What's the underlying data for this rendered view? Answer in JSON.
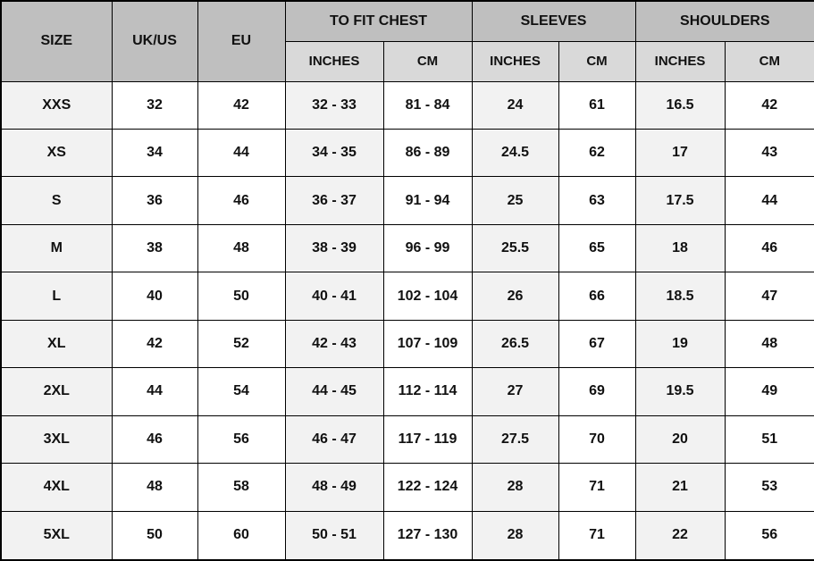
{
  "colors": {
    "header_bg": "#bfbfbf",
    "subheader_bg": "#d9d9d9",
    "shaded_cell_bg": "#f2f2f2",
    "white_cell_bg": "#ffffff",
    "border": "#000000",
    "text": "#111111"
  },
  "chart_data": {
    "type": "table",
    "header": {
      "size": "SIZE",
      "uk_us": "UK/US",
      "eu": "EU",
      "groups": [
        {
          "label": "TO FIT CHEST"
        },
        {
          "label": "SLEEVES"
        },
        {
          "label": "SHOULDERS"
        }
      ],
      "sub": [
        "INCHES",
        "CM",
        "INCHES",
        "CM",
        "INCHES",
        "CM"
      ]
    },
    "rows": [
      [
        "XXS",
        "32",
        "42",
        "32 - 33",
        "81 - 84",
        "24",
        "61",
        "16.5",
        "42"
      ],
      [
        "XS",
        "34",
        "44",
        "34 - 35",
        "86 - 89",
        "24.5",
        "62",
        "17",
        "43"
      ],
      [
        "S",
        "36",
        "46",
        "36 - 37",
        "91 - 94",
        "25",
        "63",
        "17.5",
        "44"
      ],
      [
        "M",
        "38",
        "48",
        "38 - 39",
        "96 - 99",
        "25.5",
        "65",
        "18",
        "46"
      ],
      [
        "L",
        "40",
        "50",
        "40 - 41",
        "102 - 104",
        "26",
        "66",
        "18.5",
        "47"
      ],
      [
        "XL",
        "42",
        "52",
        "42 - 43",
        "107 - 109",
        "26.5",
        "67",
        "19",
        "48"
      ],
      [
        "2XL",
        "44",
        "54",
        "44 - 45",
        "112 - 114",
        "27",
        "69",
        "19.5",
        "49"
      ],
      [
        "3XL",
        "46",
        "56",
        "46 - 47",
        "117 - 119",
        "27.5",
        "70",
        "20",
        "51"
      ],
      [
        "4XL",
        "48",
        "58",
        "48 - 49",
        "122 - 124",
        "28",
        "71",
        "21",
        "53"
      ],
      [
        "5XL",
        "50",
        "60",
        "50 - 51",
        "127 - 130",
        "28",
        "71",
        "22",
        "56"
      ]
    ]
  }
}
